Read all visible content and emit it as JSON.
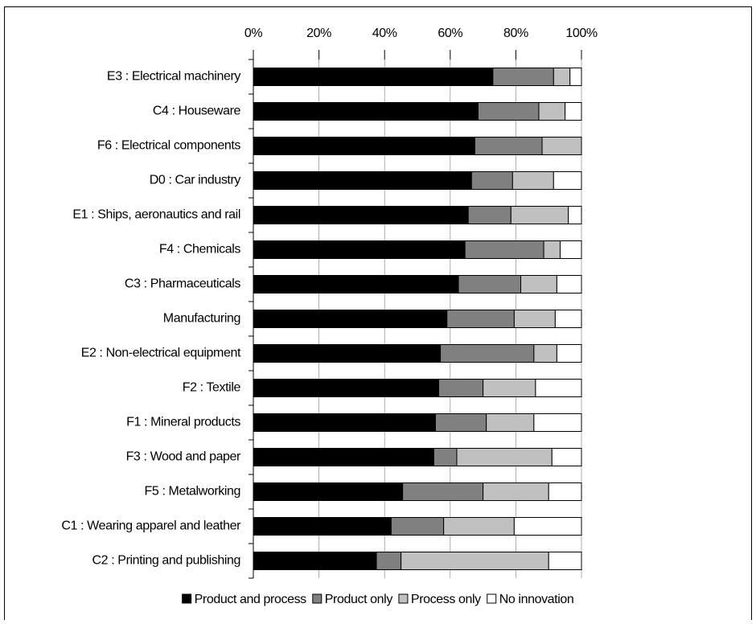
{
  "chart_data": {
    "type": "stacked-bar-horizontal",
    "categories": [
      "E3 : Electrical machinery",
      "C4 : Houseware",
      "F6 : Electrical components",
      "D0 : Car industry",
      "E1 : Ships, aeronautics and rail",
      "F4 : Chemicals",
      "C3 : Pharmaceuticals",
      "Manufacturing",
      "E2 : Non-electrical equipment",
      "F2 : Textile",
      "F1 : Mineral products",
      "F3 : Wood and paper",
      "F5 : Metalworking",
      "C1 : Wearing apparel and leather",
      "C2 : Printing and publishing"
    ],
    "series": [
      {
        "name": "Product and process",
        "color": "#000000",
        "values": [
          73,
          68.5,
          67.5,
          66.5,
          65.5,
          64.5,
          62.5,
          59,
          57,
          56.5,
          55.5,
          55,
          45.5,
          42,
          37.5
        ]
      },
      {
        "name": "Product only",
        "color": "#808080",
        "values": [
          18.5,
          18.5,
          20.5,
          12.5,
          13,
          24,
          19,
          20.5,
          28.5,
          13.5,
          15.5,
          7,
          24.5,
          16,
          7.5
        ]
      },
      {
        "name": "Process only",
        "color": "#c0c0c0",
        "values": [
          5,
          8,
          12,
          12.5,
          17.5,
          5,
          11,
          12.5,
          7,
          16,
          14.5,
          29,
          20,
          21.5,
          45
        ]
      },
      {
        "name": "No innovation",
        "color": "#ffffff",
        "values": [
          3.5,
          5,
          0,
          8.5,
          4,
          6.5,
          7.5,
          8,
          7.5,
          14,
          14.5,
          9,
          10,
          20.5,
          10
        ]
      }
    ],
    "xlim": [
      0,
      100
    ],
    "xticks": [
      {
        "value": 0,
        "label": "0%"
      },
      {
        "value": 20,
        "label": "20%"
      },
      {
        "value": 40,
        "label": "40%"
      },
      {
        "value": 60,
        "label": "60%"
      },
      {
        "value": 80,
        "label": "80%"
      },
      {
        "value": 100,
        "label": "100%"
      }
    ],
    "grid": true,
    "legend": "bottom"
  }
}
